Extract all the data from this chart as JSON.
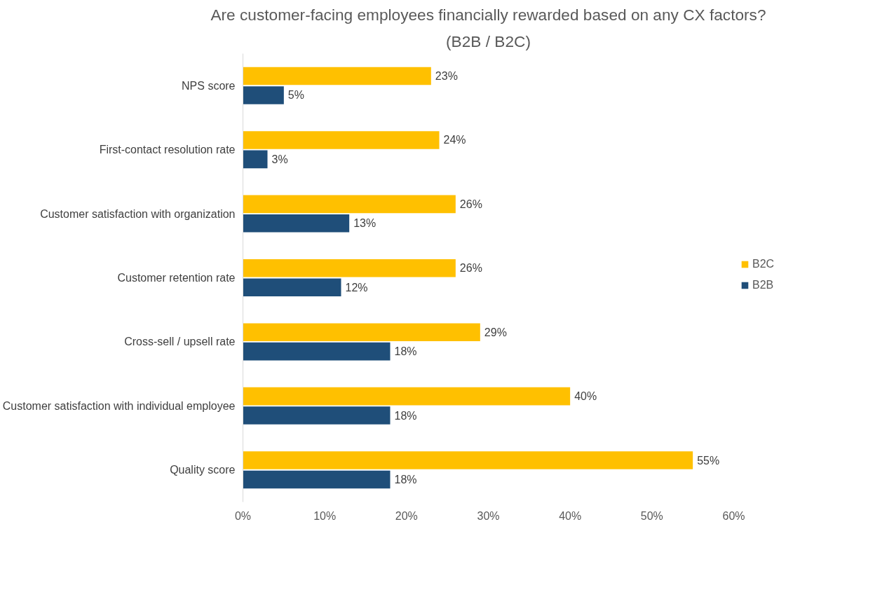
{
  "chart_data": {
    "type": "bar",
    "orientation": "horizontal",
    "title": "Are customer-facing employees financially rewarded based on any CX factors?",
    "subtitle": "(B2B / B2C)",
    "categories": [
      "NPS score",
      "First-contact resolution rate",
      "Customer satisfaction with organization",
      "Customer retention rate",
      "Cross-sell / upsell rate",
      "Customer satisfaction with individual employee",
      "Quality score"
    ],
    "series": [
      {
        "name": "B2C",
        "color": "#ffc000",
        "values": [
          23,
          24,
          26,
          26,
          29,
          40,
          55
        ],
        "value_labels": [
          "23%",
          "24%",
          "26%",
          "26%",
          "29%",
          "40%",
          "55%"
        ]
      },
      {
        "name": "B2B",
        "color": "#1f4e79",
        "values": [
          5,
          3,
          13,
          12,
          18,
          18,
          18
        ],
        "value_labels": [
          "5%",
          "3%",
          "13%",
          "12%",
          "18%",
          "18%",
          "18%"
        ]
      }
    ],
    "xlim": [
      0,
      60
    ],
    "xticks": [
      {
        "value": 0,
        "label": "0%"
      },
      {
        "value": 10,
        "label": "10%"
      },
      {
        "value": 20,
        "label": "20%"
      },
      {
        "value": 30,
        "label": "30%"
      },
      {
        "value": 40,
        "label": "40%"
      },
      {
        "value": 50,
        "label": "50%"
      },
      {
        "value": 60,
        "label": "60%"
      }
    ],
    "grid": false,
    "legend": "right"
  }
}
